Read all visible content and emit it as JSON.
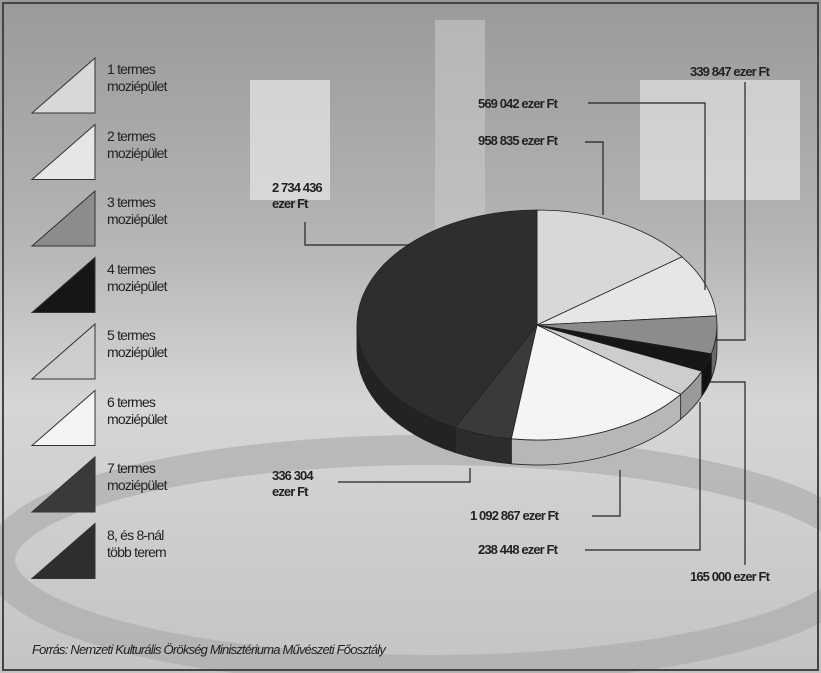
{
  "chart_data": {
    "type": "pie",
    "categories": [
      "1 termes moziépület",
      "2 termes moziépület",
      "3 termes moziépület",
      "4 termes moziépület",
      "5 termes moziépület",
      "6 termes moziépület",
      "7 termes moziépület",
      "8, és 8-nál több terem"
    ],
    "values": [
      958835,
      569042,
      339847,
      165000,
      238448,
      1092867,
      336304,
      2734436
    ],
    "value_labels": [
      "958 835 ezer Ft",
      "569 042 ezer Ft",
      "339 847 ezer Ft",
      "165 000 ezer Ft",
      "238 448 ezer Ft",
      "1 092 867 ezer Ft",
      "336 304 ezer Ft",
      "2 734 436 ezer Ft"
    ],
    "colors": [
      "#d8d8d8",
      "#e6e6e6",
      "#8c8c8c",
      "#161616",
      "#cdcdcd",
      "#f4f4f4",
      "#3a3a3a",
      "#2e2e2e"
    ],
    "source": "Forrás: Nemzeti Kulturális Örökség Minisztériuma Művészeti Főosztály"
  }
}
